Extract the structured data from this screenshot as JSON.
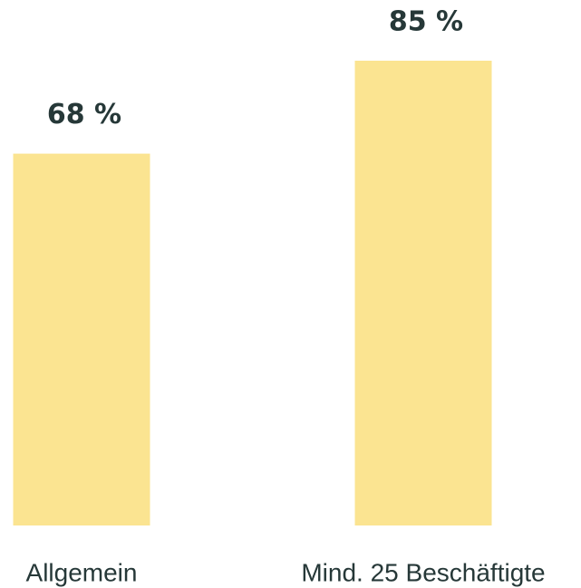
{
  "chart_data": {
    "type": "bar",
    "categories": [
      "Allgemein",
      "Mind. 25 Beschäftigte"
    ],
    "values": [
      68,
      85
    ],
    "value_labels": [
      "68 %",
      "85 %"
    ],
    "color": "#fbe491"
  }
}
